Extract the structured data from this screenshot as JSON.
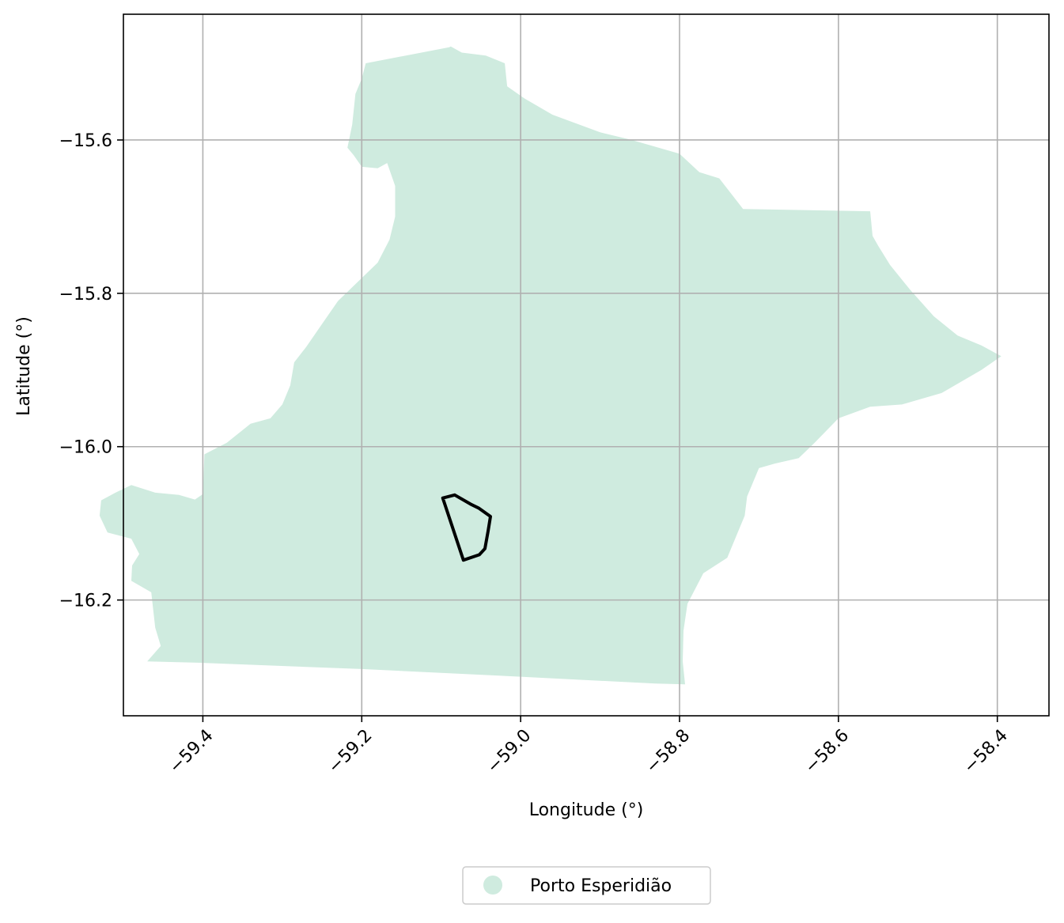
{
  "chart_data": {
    "type": "map",
    "xlabel": "Longitude (°)",
    "ylabel": "Latitude (°)",
    "xlim": [
      -59.5,
      -58.335
    ],
    "ylim": [
      -16.351,
      -15.436
    ],
    "xticks": [
      -59.4,
      -59.2,
      -59.0,
      -58.8,
      -58.6,
      -58.4
    ],
    "xtick_labels": [
      "−59.4",
      "−59.2",
      "−59.0",
      "−58.8",
      "−58.6",
      "−58.4"
    ],
    "yticks": [
      -15.6,
      -15.8,
      -16.0,
      -16.2
    ],
    "ytick_labels": [
      "−15.6",
      "−15.8",
      "−16.0",
      "−16.2"
    ],
    "grid": true,
    "legend_position": "bottom-center, below plot",
    "legend": [
      {
        "label": "Porto Esperidião",
        "color": "#cfebdf",
        "marker": "circle"
      }
    ],
    "municipality": {
      "name": "Porto Esperidião",
      "fill": "#cfebdf",
      "boundary_lonlat": [
        [
          -59.088,
          -15.478
        ],
        [
          -59.074,
          -15.486
        ],
        [
          -59.044,
          -15.49
        ],
        [
          -59.02,
          -15.5
        ],
        [
          -59.017,
          -15.53
        ],
        [
          -58.995,
          -15.546
        ],
        [
          -58.96,
          -15.567
        ],
        [
          -58.9,
          -15.59
        ],
        [
          -58.86,
          -15.6
        ],
        [
          -58.8,
          -15.618
        ],
        [
          -58.775,
          -15.642
        ],
        [
          -58.75,
          -15.65
        ],
        [
          -58.72,
          -15.69
        ],
        [
          -58.56,
          -15.693
        ],
        [
          -58.557,
          -15.725
        ],
        [
          -58.55,
          -15.738
        ],
        [
          -58.535,
          -15.763
        ],
        [
          -58.51,
          -15.795
        ],
        [
          -58.48,
          -15.83
        ],
        [
          -58.45,
          -15.855
        ],
        [
          -58.42,
          -15.868
        ],
        [
          -58.395,
          -15.882
        ],
        [
          -58.42,
          -15.9
        ],
        [
          -58.47,
          -15.93
        ],
        [
          -58.52,
          -15.945
        ],
        [
          -58.56,
          -15.948
        ],
        [
          -58.6,
          -15.963
        ],
        [
          -58.63,
          -15.995
        ],
        [
          -58.65,
          -16.015
        ],
        [
          -58.68,
          -16.022
        ],
        [
          -58.7,
          -16.028
        ],
        [
          -58.715,
          -16.065
        ],
        [
          -58.718,
          -16.09
        ],
        [
          -58.73,
          -16.12
        ],
        [
          -58.74,
          -16.145
        ],
        [
          -58.77,
          -16.165
        ],
        [
          -58.79,
          -16.205
        ],
        [
          -58.795,
          -16.24
        ],
        [
          -58.796,
          -16.28
        ],
        [
          -58.793,
          -16.31
        ],
        [
          -58.83,
          -16.309
        ],
        [
          -59.0,
          -16.3
        ],
        [
          -59.2,
          -16.29
        ],
        [
          -59.4,
          -16.282
        ],
        [
          -59.47,
          -16.28
        ],
        [
          -59.453,
          -16.26
        ],
        [
          -59.46,
          -16.236
        ],
        [
          -59.465,
          -16.19
        ],
        [
          -59.49,
          -16.175
        ],
        [
          -59.489,
          -16.155
        ],
        [
          -59.48,
          -16.14
        ],
        [
          -59.49,
          -16.12
        ],
        [
          -59.52,
          -16.112
        ],
        [
          -59.53,
          -16.09
        ],
        [
          -59.528,
          -16.07
        ],
        [
          -59.51,
          -16.06
        ],
        [
          -59.49,
          -16.05
        ],
        [
          -59.46,
          -16.06
        ],
        [
          -59.43,
          -16.063
        ],
        [
          -59.41,
          -16.069
        ],
        [
          -59.4,
          -16.062
        ],
        [
          -59.398,
          -16.01
        ],
        [
          -59.37,
          -15.995
        ],
        [
          -59.34,
          -15.97
        ],
        [
          -59.315,
          -15.963
        ],
        [
          -59.3,
          -15.945
        ],
        [
          -59.29,
          -15.92
        ],
        [
          -59.285,
          -15.89
        ],
        [
          -59.27,
          -15.87
        ],
        [
          -59.25,
          -15.84
        ],
        [
          -59.23,
          -15.81
        ],
        [
          -59.2,
          -15.78
        ],
        [
          -59.18,
          -15.76
        ],
        [
          -59.165,
          -15.73
        ],
        [
          -59.158,
          -15.7
        ],
        [
          -59.158,
          -15.66
        ],
        [
          -59.168,
          -15.63
        ],
        [
          -59.18,
          -15.637
        ],
        [
          -59.2,
          -15.635
        ],
        [
          -59.21,
          -15.62
        ],
        [
          -59.218,
          -15.61
        ],
        [
          -59.212,
          -15.58
        ],
        [
          -59.208,
          -15.54
        ],
        [
          -59.2,
          -15.52
        ],
        [
          -59.195,
          -15.5
        ],
        [
          -59.09,
          -15.479
        ]
      ]
    },
    "highlight_area": {
      "stroke": "#000000",
      "boundary_lonlat": [
        [
          -59.098,
          -16.067
        ],
        [
          -59.083,
          -16.063
        ],
        [
          -59.063,
          -16.075
        ],
        [
          -59.053,
          -16.08
        ],
        [
          -59.038,
          -16.091
        ],
        [
          -59.041,
          -16.11
        ],
        [
          -59.045,
          -16.133
        ],
        [
          -59.052,
          -16.141
        ],
        [
          -59.072,
          -16.148
        ],
        [
          -59.098,
          -16.067
        ]
      ]
    }
  }
}
